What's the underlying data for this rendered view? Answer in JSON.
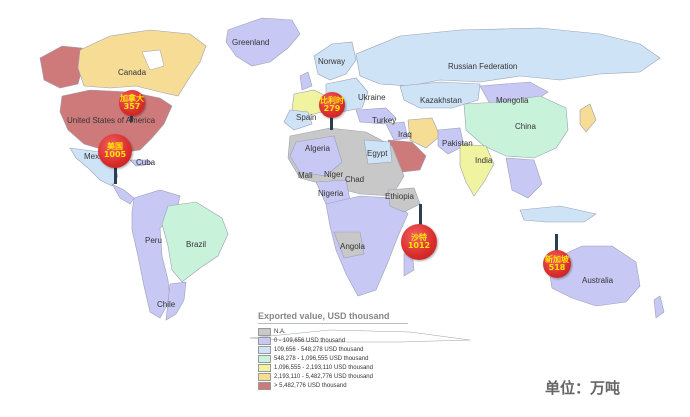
{
  "colors": {
    "ocean": "#ffffff",
    "na": "#c8c8c8",
    "bin1": "#c8c8f5",
    "bin2": "#cfe3f7",
    "bin3": "#c9f2db",
    "bin4": "#f0f3a0",
    "bin5": "#f7dc96",
    "bin6": "#cf7a7a",
    "border": "#9aa0b4",
    "marker": "#d92b2b",
    "marker_text": "#ffe600",
    "stem": "#2c3e50"
  },
  "legend": {
    "title": "Exported value, USD thousand",
    "items": [
      {
        "label": "N.A.",
        "color_key": "na"
      },
      {
        "label": "0 - 109,656 USD thousand",
        "color_key": "bin1"
      },
      {
        "label": "109,656 - 548,278 USD thousand",
        "color_key": "bin2"
      },
      {
        "label": "548,278 - 1,096,555 USD thousand",
        "color_key": "bin3"
      },
      {
        "label": "1,096,555 - 2,193,110 USD thousand",
        "color_key": "bin4"
      },
      {
        "label": "2,193,110 - 5,482,776 USD thousand",
        "color_key": "bin5"
      },
      {
        "label": "> 5,482,776 USD thousand",
        "color_key": "bin6"
      }
    ]
  },
  "unit_label": "单位：万吨",
  "country_labels": {
    "greenland": "Greenland",
    "canada": "Canada",
    "usa": "United States of America",
    "mexico": "Mexico",
    "cuba": "Cuba",
    "norway": "Norway",
    "russia": "Russian Federation",
    "ukraine": "Ukraine",
    "spain": "Spain",
    "turkey": "Turkey",
    "kazakhstan": "Kazakhstan",
    "mongolia": "Mongolia",
    "china": "China",
    "iraq": "Iraq",
    "algeria": "Algeria",
    "egypt": "Egypt",
    "pakistan": "Pakistan",
    "india": "India",
    "mali": "Mali",
    "niger": "Niger",
    "chad": "Chad",
    "nigeria": "Nigeria",
    "ethiopia": "Ethiopia",
    "peru": "Peru",
    "brazil": "Brazil",
    "angola": "Angola",
    "chile": "Chile",
    "australia": "Australia"
  },
  "markers": [
    {
      "name": "加拿大",
      "value": "357"
    },
    {
      "name": "美国",
      "value": "1005"
    },
    {
      "name": "比利时",
      "value": "279"
    },
    {
      "name": "沙特",
      "value": "1012"
    },
    {
      "name": "新加坡",
      "value": "518"
    }
  ]
}
